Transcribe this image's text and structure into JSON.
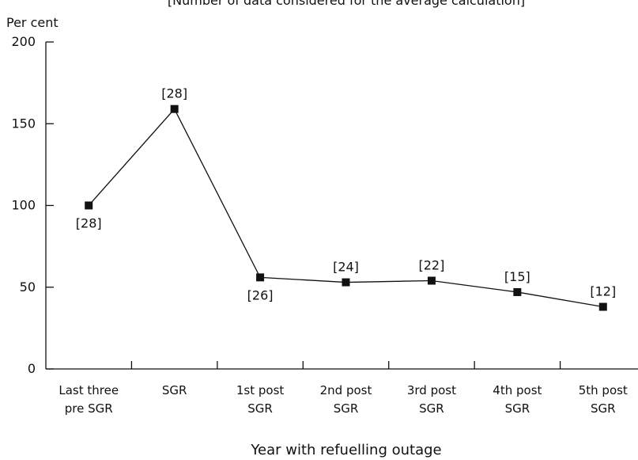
{
  "chart_data": {
    "type": "line",
    "subtitle": "[Number of data considered for the average calculation]",
    "ylabel": "Per cent",
    "xlabel": "Year with refuelling outage",
    "ylim": [
      0,
      200
    ],
    "yticks": [
      0,
      50,
      100,
      150,
      200
    ],
    "categories": [
      [
        "Last three",
        "pre SGR"
      ],
      [
        "SGR"
      ],
      [
        "1st post",
        "SGR"
      ],
      [
        "2nd post",
        "SGR"
      ],
      [
        "3rd post",
        "SGR"
      ],
      [
        "4th post",
        "SGR"
      ],
      [
        "5th post",
        "SGR"
      ]
    ],
    "values": [
      100,
      159,
      56,
      53,
      54,
      47,
      38
    ],
    "annotations": [
      "[28]",
      "[28]",
      "[26]",
      "[24]",
      "[22]",
      "[15]",
      "[12]"
    ],
    "annotation_position": [
      "below",
      "above",
      "below",
      "above",
      "above",
      "above",
      "above"
    ],
    "grid": false,
    "line_color": "#111111",
    "marker": "square"
  }
}
